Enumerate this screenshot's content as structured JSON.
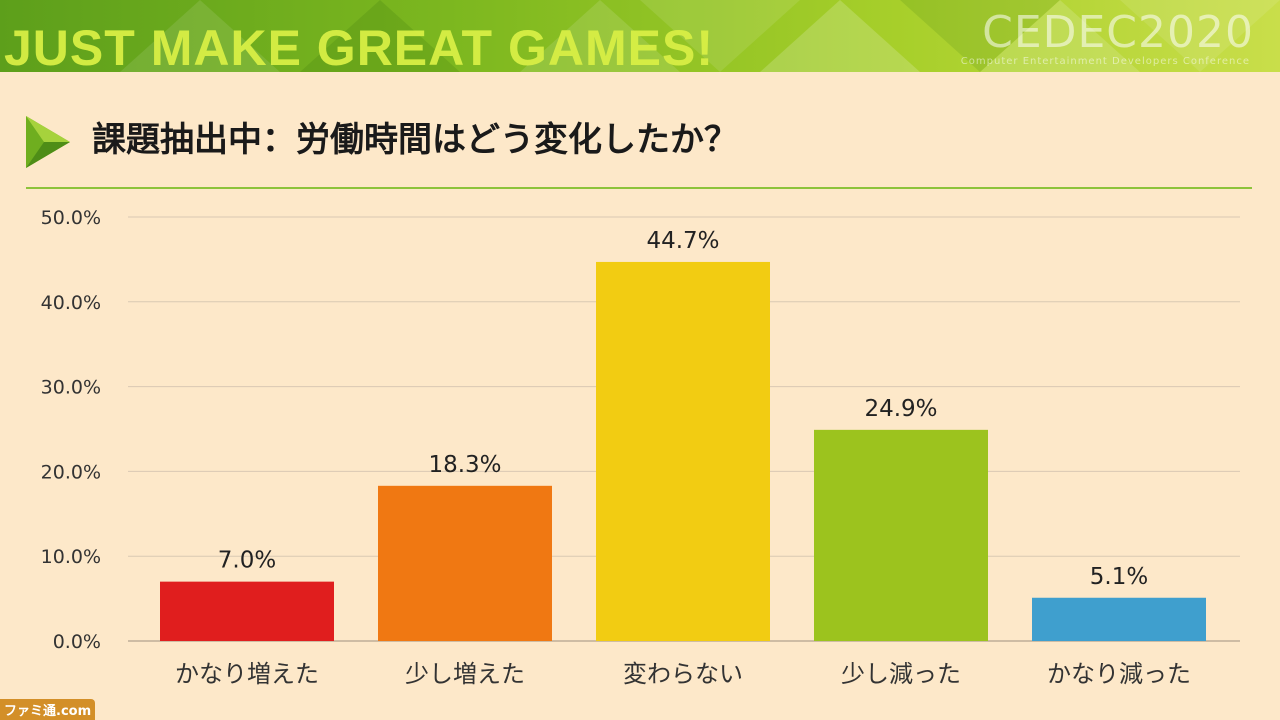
{
  "banner": {
    "tagline": "JUST MAKE GREAT GAMES!",
    "logo_text": "CEDEC2020",
    "logo_subtext": "Computer Entertainment Developers Conference"
  },
  "header": {
    "title": "課題抽出中：労働時間はどう変化したか？",
    "arrow_icon": "triangle-arrow-icon"
  },
  "watermark": {
    "text": "ファミ通.com"
  },
  "colors": {
    "background": "#fde8c9",
    "accent_green": "#8dc33b",
    "grid": "#d9c9b3"
  },
  "chart_data": {
    "type": "bar",
    "categories": [
      "かなり増えた",
      "少し増えた",
      "変わらない",
      "少し減った",
      "かなり減った"
    ],
    "values": [
      7.0,
      18.3,
      44.7,
      24.9,
      5.1
    ],
    "value_labels": [
      "7.0%",
      "18.3%",
      "44.7%",
      "24.9%",
      "5.1%"
    ],
    "bar_colors": [
      "#e01e1e",
      "#f07812",
      "#f2cc12",
      "#9cc31e",
      "#3f9fce"
    ],
    "title": "",
    "xlabel": "",
    "ylabel": "",
    "ylim": [
      0,
      50
    ],
    "yticks": [
      0,
      10,
      20,
      30,
      40,
      50
    ],
    "ytick_labels": [
      "0.0%",
      "10.0%",
      "20.0%",
      "30.0%",
      "40.0%",
      "50.0%"
    ],
    "grid": true,
    "legend": "none"
  }
}
